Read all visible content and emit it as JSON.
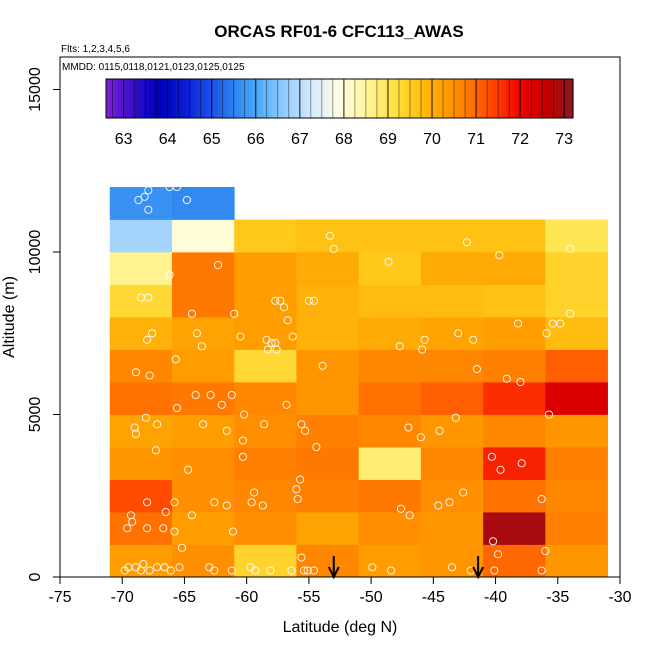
{
  "chart_data": {
    "type": "heatmap",
    "title": "ORCAS RF01-6 CFC113_AWAS",
    "flights_label": "Flts: 1,2,3,4,5,6",
    "dates_label": "MMDD: 0115,0118,0121,0123,0125,0125",
    "xlabel": "Latitude (deg N)",
    "ylabel": "Altitude (m)",
    "xlim": [
      -75,
      -30
    ],
    "ylim": [
      0,
      16000
    ],
    "x_ticks": [
      -75,
      -70,
      -65,
      -60,
      -55,
      -50,
      -45,
      -40,
      -35,
      -30
    ],
    "y_ticks": [
      0,
      5000,
      10000,
      15000
    ],
    "color_range": [
      62.6,
      73.2
    ],
    "colorbar_ticks": [
      63,
      64,
      65,
      66,
      67,
      68,
      69,
      70,
      71,
      72,
      73
    ],
    "colorbar_colors": [
      "#7d1fd8",
      "#3a10c8",
      "#0000bb",
      "#0a1ad2",
      "#1a4ee8",
      "#2e86f0",
      "#56b0fa",
      "#9ad0fd",
      "#d8ecfd",
      "#fffde4",
      "#fff5a0",
      "#ffe44a",
      "#ffc414",
      "#ffa000",
      "#ff7600",
      "#ff4000",
      "#ee0000",
      "#c40000",
      "#8c1820"
    ],
    "cell_size": {
      "lat_deg": 5,
      "alt_m": 1000
    },
    "cells": [
      {
        "lat": -71,
        "alt": 0,
        "value": 70.3
      },
      {
        "lat": -66,
        "alt": 0,
        "value": 70.5
      },
      {
        "lat": -61,
        "alt": 0,
        "value": 69.4
      },
      {
        "lat": -56,
        "alt": 0,
        "value": 70.6
      },
      {
        "lat": -51,
        "alt": 0,
        "value": 70.3
      },
      {
        "lat": -46,
        "alt": 0,
        "value": 70.4
      },
      {
        "lat": -41,
        "alt": 0,
        "value": 71.0
      },
      {
        "lat": -36,
        "alt": 0,
        "value": 70.4
      },
      {
        "lat": -71,
        "alt": 1000,
        "value": 70.9
      },
      {
        "lat": -66,
        "alt": 1000,
        "value": 70.3
      },
      {
        "lat": -61,
        "alt": 1000,
        "value": 70.5
      },
      {
        "lat": -56,
        "alt": 1000,
        "value": 70.2
      },
      {
        "lat": -51,
        "alt": 1000,
        "value": 70.5
      },
      {
        "lat": -46,
        "alt": 1000,
        "value": 70.4
      },
      {
        "lat": -41,
        "alt": 1000,
        "value": 72.9
      },
      {
        "lat": -36,
        "alt": 1000,
        "value": 70.7
      },
      {
        "lat": -71,
        "alt": 2000,
        "value": 71.3
      },
      {
        "lat": -66,
        "alt": 2000,
        "value": 70.5
      },
      {
        "lat": -61,
        "alt": 2000,
        "value": 70.6
      },
      {
        "lat": -56,
        "alt": 2000,
        "value": 70.7
      },
      {
        "lat": -51,
        "alt": 2000,
        "value": 70.8
      },
      {
        "lat": -46,
        "alt": 2000,
        "value": 70.5
      },
      {
        "lat": -41,
        "alt": 2000,
        "value": 70.9
      },
      {
        "lat": -36,
        "alt": 2000,
        "value": 70.6
      },
      {
        "lat": -71,
        "alt": 3000,
        "value": 70.4
      },
      {
        "lat": -66,
        "alt": 3000,
        "value": 70.5
      },
      {
        "lat": -61,
        "alt": 3000,
        "value": 70.7
      },
      {
        "lat": -56,
        "alt": 3000,
        "value": 70.8
      },
      {
        "lat": -51,
        "alt": 3000,
        "value": 68.8
      },
      {
        "lat": -46,
        "alt": 3000,
        "value": 70.6
      },
      {
        "lat": -41,
        "alt": 3000,
        "value": 71.7
      },
      {
        "lat": -36,
        "alt": 3000,
        "value": 70.7
      },
      {
        "lat": -71,
        "alt": 4000,
        "value": 70.2
      },
      {
        "lat": -66,
        "alt": 4000,
        "value": 70.3
      },
      {
        "lat": -61,
        "alt": 4000,
        "value": 70.5
      },
      {
        "lat": -56,
        "alt": 4000,
        "value": 70.7
      },
      {
        "lat": -51,
        "alt": 4000,
        "value": 70.6
      },
      {
        "lat": -46,
        "alt": 4000,
        "value": 70.4
      },
      {
        "lat": -41,
        "alt": 4000,
        "value": 70.6
      },
      {
        "lat": -36,
        "alt": 4000,
        "value": 70.4
      },
      {
        "lat": -71,
        "alt": 5000,
        "value": 70.9
      },
      {
        "lat": -66,
        "alt": 5000,
        "value": 70.8
      },
      {
        "lat": -61,
        "alt": 5000,
        "value": 70.6
      },
      {
        "lat": -56,
        "alt": 5000,
        "value": 70.4
      },
      {
        "lat": -51,
        "alt": 5000,
        "value": 70.9
      },
      {
        "lat": -46,
        "alt": 5000,
        "value": 71.1
      },
      {
        "lat": -41,
        "alt": 5000,
        "value": 71.6
      },
      {
        "lat": -36,
        "alt": 5000,
        "value": 72.3
      },
      {
        "lat": -71,
        "alt": 6000,
        "value": 70.6
      },
      {
        "lat": -66,
        "alt": 6000,
        "value": 70.3
      },
      {
        "lat": -61,
        "alt": 6000,
        "value": 69.3
      },
      {
        "lat": -56,
        "alt": 6000,
        "value": 70.4
      },
      {
        "lat": -51,
        "alt": 6000,
        "value": 70.6
      },
      {
        "lat": -46,
        "alt": 6000,
        "value": 70.6
      },
      {
        "lat": -41,
        "alt": 6000,
        "value": 70.7
      },
      {
        "lat": -36,
        "alt": 6000,
        "value": 71.1
      },
      {
        "lat": -71,
        "alt": 7000,
        "value": 70.0
      },
      {
        "lat": -66,
        "alt": 7000,
        "value": 70.2
      },
      {
        "lat": -61,
        "alt": 7000,
        "value": 70.3
      },
      {
        "lat": -56,
        "alt": 7000,
        "value": 70.0
      },
      {
        "lat": -51,
        "alt": 7000,
        "value": 70.1
      },
      {
        "lat": -46,
        "alt": 7000,
        "value": 70.2
      },
      {
        "lat": -41,
        "alt": 7000,
        "value": 70.3
      },
      {
        "lat": -36,
        "alt": 7000,
        "value": 69.8
      },
      {
        "lat": -71,
        "alt": 8000,
        "value": 69.3
      },
      {
        "lat": -66,
        "alt": 8000,
        "value": 70.8
      },
      {
        "lat": -61,
        "alt": 8000,
        "value": 70.3
      },
      {
        "lat": -56,
        "alt": 8000,
        "value": 70.0
      },
      {
        "lat": -51,
        "alt": 8000,
        "value": 69.8
      },
      {
        "lat": -46,
        "alt": 8000,
        "value": 69.8
      },
      {
        "lat": -41,
        "alt": 8000,
        "value": 69.7
      },
      {
        "lat": -36,
        "alt": 8000,
        "value": 69.4
      },
      {
        "lat": -71,
        "alt": 9000,
        "value": 68.6
      },
      {
        "lat": -66,
        "alt": 9000,
        "value": 70.8
      },
      {
        "lat": -61,
        "alt": 9000,
        "value": 70.3
      },
      {
        "lat": -56,
        "alt": 9000,
        "value": 70.1
      },
      {
        "lat": -51,
        "alt": 9000,
        "value": 69.6
      },
      {
        "lat": -46,
        "alt": 9000,
        "value": 70.1
      },
      {
        "lat": -41,
        "alt": 9000,
        "value": 70.1
      },
      {
        "lat": -36,
        "alt": 9000,
        "value": 69.4
      },
      {
        "lat": -71,
        "alt": 10000,
        "value": 66.8
      },
      {
        "lat": -66,
        "alt": 10000,
        "value": 68.0
      },
      {
        "lat": -61,
        "alt": 10000,
        "value": 69.6
      },
      {
        "lat": -56,
        "alt": 10000,
        "value": 69.7
      },
      {
        "lat": -51,
        "alt": 10000,
        "value": 69.7
      },
      {
        "lat": -46,
        "alt": 10000,
        "value": 69.7
      },
      {
        "lat": -41,
        "alt": 10000,
        "value": 69.7
      },
      {
        "lat": -36,
        "alt": 10000,
        "value": 69.0
      },
      {
        "lat": -71,
        "alt": 11000,
        "value": 65.7
      },
      {
        "lat": -66,
        "alt": 11000,
        "value": 65.6
      }
    ],
    "sample_points": [
      {
        "lat": -67.9,
        "alt": 11900
      },
      {
        "lat": -68.2,
        "alt": 11700
      },
      {
        "lat": -66.2,
        "alt": 12000
      },
      {
        "lat": -65.6,
        "alt": 12000
      },
      {
        "lat": -68.7,
        "alt": 11600
      },
      {
        "lat": -64.8,
        "alt": 11600
      },
      {
        "lat": -67.9,
        "alt": 11300
      },
      {
        "lat": -53.3,
        "alt": 10500
      },
      {
        "lat": -53.0,
        "alt": 10100
      },
      {
        "lat": -42.3,
        "alt": 10300
      },
      {
        "lat": -39.7,
        "alt": 9900
      },
      {
        "lat": -34.0,
        "alt": 10100
      },
      {
        "lat": -62.3,
        "alt": 9600
      },
      {
        "lat": -48.6,
        "alt": 9700
      },
      {
        "lat": -66.2,
        "alt": 9300
      },
      {
        "lat": -67.9,
        "alt": 8600
      },
      {
        "lat": -68.5,
        "alt": 8600
      },
      {
        "lat": -57.7,
        "alt": 8500
      },
      {
        "lat": -57.3,
        "alt": 8500
      },
      {
        "lat": -55.0,
        "alt": 8500
      },
      {
        "lat": -54.6,
        "alt": 8500
      },
      {
        "lat": -57.0,
        "alt": 8300
      },
      {
        "lat": -64.4,
        "alt": 8100
      },
      {
        "lat": -61.0,
        "alt": 8100
      },
      {
        "lat": -34.0,
        "alt": 8100
      },
      {
        "lat": -56.7,
        "alt": 7900
      },
      {
        "lat": -38.2,
        "alt": 7800
      },
      {
        "lat": -35.4,
        "alt": 7800
      },
      {
        "lat": -34.8,
        "alt": 7800
      },
      {
        "lat": -67.6,
        "alt": 7500
      },
      {
        "lat": -68.0,
        "alt": 7300
      },
      {
        "lat": -64.0,
        "alt": 7500
      },
      {
        "lat": -60.5,
        "alt": 7400
      },
      {
        "lat": -58.4,
        "alt": 7300
      },
      {
        "lat": -58.0,
        "alt": 7200
      },
      {
        "lat": -57.7,
        "alt": 7200
      },
      {
        "lat": -56.3,
        "alt": 7400
      },
      {
        "lat": -58.3,
        "alt": 7000
      },
      {
        "lat": -57.6,
        "alt": 7000
      },
      {
        "lat": -63.6,
        "alt": 7100
      },
      {
        "lat": -47.7,
        "alt": 7100
      },
      {
        "lat": -45.7,
        "alt": 7300
      },
      {
        "lat": -45.9,
        "alt": 7000
      },
      {
        "lat": -43.0,
        "alt": 7500
      },
      {
        "lat": -41.8,
        "alt": 7300
      },
      {
        "lat": -35.9,
        "alt": 7500
      },
      {
        "lat": -65.7,
        "alt": 6700
      },
      {
        "lat": -68.9,
        "alt": 6300
      },
      {
        "lat": -67.8,
        "alt": 6200
      },
      {
        "lat": -53.9,
        "alt": 6500
      },
      {
        "lat": -41.5,
        "alt": 6400
      },
      {
        "lat": -39.1,
        "alt": 6100
      },
      {
        "lat": -38.0,
        "alt": 6000
      },
      {
        "lat": -64.1,
        "alt": 5600
      },
      {
        "lat": -62.9,
        "alt": 5600
      },
      {
        "lat": -61.2,
        "alt": 5600
      },
      {
        "lat": -62.0,
        "alt": 5300
      },
      {
        "lat": -65.6,
        "alt": 5200
      },
      {
        "lat": -56.8,
        "alt": 5300
      },
      {
        "lat": -60.2,
        "alt": 5000
      },
      {
        "lat": -35.7,
        "alt": 5000
      },
      {
        "lat": -68.1,
        "alt": 4900
      },
      {
        "lat": -43.2,
        "alt": 4900
      },
      {
        "lat": -69.0,
        "alt": 4600
      },
      {
        "lat": -68.9,
        "alt": 4400
      },
      {
        "lat": -67.2,
        "alt": 4700
      },
      {
        "lat": -63.5,
        "alt": 4700
      },
      {
        "lat": -61.6,
        "alt": 4500
      },
      {
        "lat": -58.6,
        "alt": 4700
      },
      {
        "lat": -55.6,
        "alt": 4700
      },
      {
        "lat": -55.3,
        "alt": 4500
      },
      {
        "lat": -47.0,
        "alt": 4600
      },
      {
        "lat": -44.5,
        "alt": 4500
      },
      {
        "lat": -46.0,
        "alt": 4300
      },
      {
        "lat": -60.3,
        "alt": 4200
      },
      {
        "lat": -54.4,
        "alt": 4000
      },
      {
        "lat": -67.3,
        "alt": 3900
      },
      {
        "lat": -60.3,
        "alt": 3700
      },
      {
        "lat": -40.3,
        "alt": 3700
      },
      {
        "lat": -37.9,
        "alt": 3500
      },
      {
        "lat": -39.6,
        "alt": 3300
      },
      {
        "lat": -64.7,
        "alt": 3300
      },
      {
        "lat": -55.7,
        "alt": 3000
      },
      {
        "lat": -56.0,
        "alt": 2700
      },
      {
        "lat": -59.4,
        "alt": 2600
      },
      {
        "lat": -42.6,
        "alt": 2600
      },
      {
        "lat": -55.9,
        "alt": 2400
      },
      {
        "lat": -36.3,
        "alt": 2400
      },
      {
        "lat": -68.0,
        "alt": 2300
      },
      {
        "lat": -65.8,
        "alt": 2300
      },
      {
        "lat": -62.6,
        "alt": 2300
      },
      {
        "lat": -61.6,
        "alt": 2200
      },
      {
        "lat": -59.6,
        "alt": 2300
      },
      {
        "lat": -58.7,
        "alt": 2200
      },
      {
        "lat": -43.7,
        "alt": 2300
      },
      {
        "lat": -44.6,
        "alt": 2200
      },
      {
        "lat": -47.6,
        "alt": 2100
      },
      {
        "lat": -46.9,
        "alt": 1900
      },
      {
        "lat": -69.3,
        "alt": 1900
      },
      {
        "lat": -66.5,
        "alt": 2000
      },
      {
        "lat": -64.4,
        "alt": 1900
      },
      {
        "lat": -69.2,
        "alt": 1700
      },
      {
        "lat": -69.6,
        "alt": 1500
      },
      {
        "lat": -68.0,
        "alt": 1500
      },
      {
        "lat": -66.7,
        "alt": 1500
      },
      {
        "lat": -65.8,
        "alt": 1400
      },
      {
        "lat": -61.1,
        "alt": 1400
      },
      {
        "lat": -40.2,
        "alt": 1100
      },
      {
        "lat": -65.2,
        "alt": 900
      },
      {
        "lat": -55.6,
        "alt": 600
      },
      {
        "lat": -39.8,
        "alt": 700
      },
      {
        "lat": -36.0,
        "alt": 800
      },
      {
        "lat": -69.5,
        "alt": 300
      },
      {
        "lat": -68.9,
        "alt": 300
      },
      {
        "lat": -68.3,
        "alt": 400
      },
      {
        "lat": -67.8,
        "alt": 200
      },
      {
        "lat": -67.2,
        "alt": 300
      },
      {
        "lat": -66.6,
        "alt": 300
      },
      {
        "lat": -66.1,
        "alt": 200
      },
      {
        "lat": -65.4,
        "alt": 300
      },
      {
        "lat": -63.0,
        "alt": 300
      },
      {
        "lat": -62.6,
        "alt": 200
      },
      {
        "lat": -61.2,
        "alt": 200
      },
      {
        "lat": -59.7,
        "alt": 300
      },
      {
        "lat": -59.3,
        "alt": 200
      },
      {
        "lat": -58.1,
        "alt": 200
      },
      {
        "lat": -56.4,
        "alt": 200
      },
      {
        "lat": -55.4,
        "alt": 200
      },
      {
        "lat": -55.1,
        "alt": 200
      },
      {
        "lat": -54.6,
        "alt": 200
      },
      {
        "lat": -49.9,
        "alt": 300
      },
      {
        "lat": -48.4,
        "alt": 200
      },
      {
        "lat": -43.5,
        "alt": 300
      },
      {
        "lat": -42.0,
        "alt": 200
      },
      {
        "lat": -40.1,
        "alt": 200
      },
      {
        "lat": -36.3,
        "alt": 200
      },
      {
        "lat": -69.8,
        "alt": 200
      },
      {
        "lat": -68.5,
        "alt": 200
      }
    ],
    "arrows": [
      {
        "lat": -53.0
      },
      {
        "lat": -41.4
      }
    ]
  }
}
